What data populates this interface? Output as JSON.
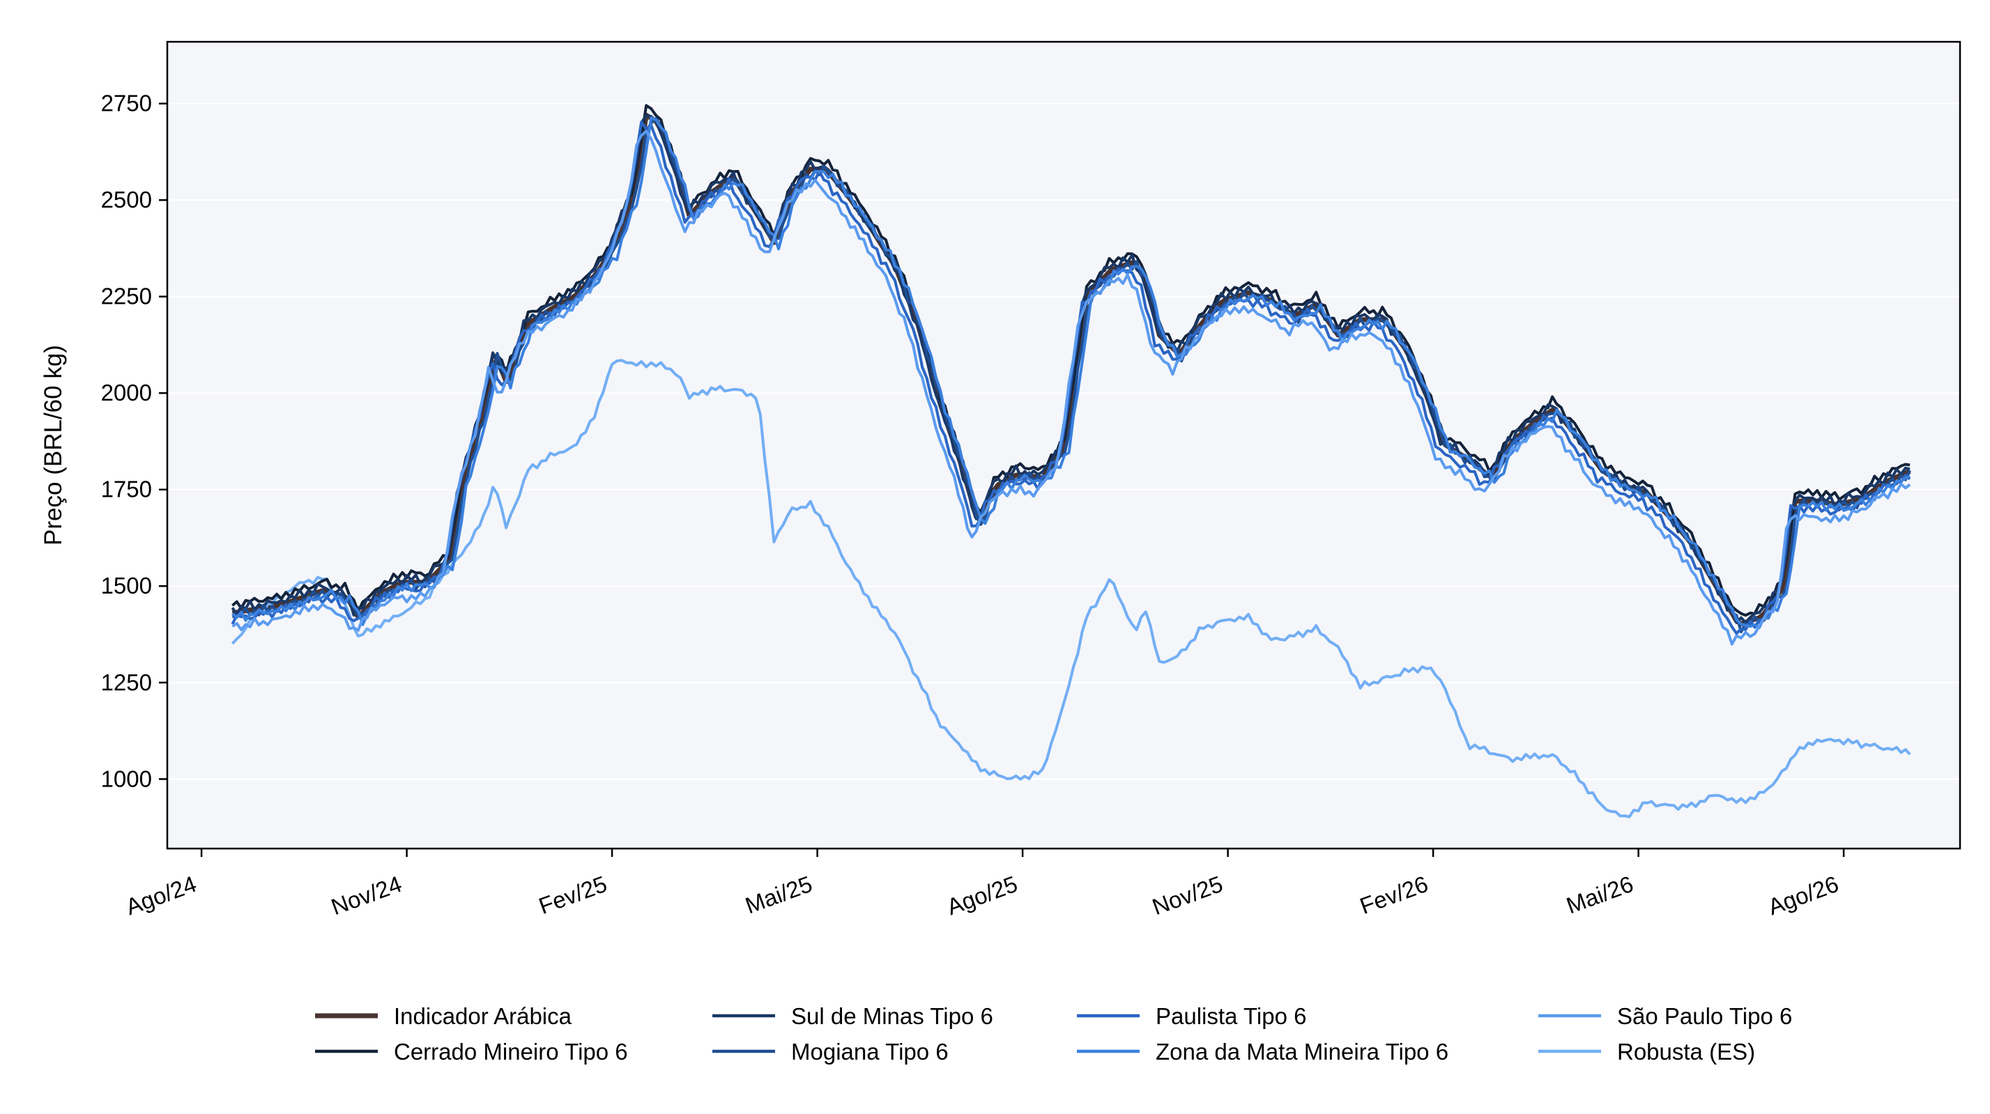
{
  "chart_data": {
    "type": "line",
    "title": "",
    "xlabel": "",
    "ylabel": "Preço (BRL/60 kg)",
    "ylim": [
      820,
      2910
    ],
    "yticks": [
      1000,
      1250,
      1500,
      1750,
      2000,
      2250,
      2500,
      2750
    ],
    "xlim_months": [
      -0.5,
      25.7
    ],
    "xticks": [
      {
        "label": "Ago/24",
        "m": 0
      },
      {
        "label": "Nov/24",
        "m": 3
      },
      {
        "label": "Fev/25",
        "m": 6
      },
      {
        "label": "Mai/25",
        "m": 9
      },
      {
        "label": "Ago/25",
        "m": 12
      },
      {
        "label": "Nov/25",
        "m": 15
      },
      {
        "label": "Fev/26",
        "m": 18
      },
      {
        "label": "Mai/26",
        "m": 21
      },
      {
        "label": "Ago/26",
        "m": 24
      }
    ],
    "grid": "horizontal",
    "legend_position": "bottom",
    "x_start": "2024-08-15",
    "x_end": "2026-09-01",
    "background": "#f4f6fa",
    "arabica_base": [
      [
        "2024-08-15",
        1430
      ],
      [
        "2024-08-25",
        1440
      ],
      [
        "2024-09-05",
        1450
      ],
      [
        "2024-09-15",
        1470
      ],
      [
        "2024-09-25",
        1490
      ],
      [
        "2024-10-05",
        1470
      ],
      [
        "2024-10-10",
        1420
      ],
      [
        "2024-10-20",
        1480
      ],
      [
        "2024-10-30",
        1510
      ],
      [
        "2024-11-10",
        1510
      ],
      [
        "2024-11-20",
        1570
      ],
      [
        "2024-11-25",
        1760
      ],
      [
        "2024-12-05",
        1960
      ],
      [
        "2024-12-10",
        2100
      ],
      [
        "2024-12-15",
        2030
      ],
      [
        "2024-12-25",
        2180
      ],
      [
        "2025-01-05",
        2220
      ],
      [
        "2025-01-15",
        2250
      ],
      [
        "2025-01-25",
        2310
      ],
      [
        "2025-02-01",
        2370
      ],
      [
        "2025-02-10",
        2520
      ],
      [
        "2025-02-15",
        2720
      ],
      [
        "2025-02-20",
        2700
      ],
      [
        "2025-03-01",
        2540
      ],
      [
        "2025-03-05",
        2460
      ],
      [
        "2025-03-15",
        2520
      ],
      [
        "2025-03-25",
        2560
      ],
      [
        "2025-04-05",
        2460
      ],
      [
        "2025-04-12",
        2390
      ],
      [
        "2025-04-20",
        2520
      ],
      [
        "2025-04-28",
        2580
      ],
      [
        "2025-05-05",
        2580
      ],
      [
        "2025-05-15",
        2510
      ],
      [
        "2025-05-25",
        2430
      ],
      [
        "2025-06-05",
        2330
      ],
      [
        "2025-06-15",
        2180
      ],
      [
        "2025-06-25",
        1970
      ],
      [
        "2025-07-05",
        1800
      ],
      [
        "2025-07-12",
        1660
      ],
      [
        "2025-07-20",
        1760
      ],
      [
        "2025-07-30",
        1790
      ],
      [
        "2025-08-10",
        1780
      ],
      [
        "2025-08-20",
        1860
      ],
      [
        "2025-08-30",
        2250
      ],
      [
        "2025-09-10",
        2320
      ],
      [
        "2025-09-20",
        2340
      ],
      [
        "2025-09-25",
        2290
      ],
      [
        "2025-10-01",
        2150
      ],
      [
        "2025-10-10",
        2100
      ],
      [
        "2025-10-20",
        2180
      ],
      [
        "2025-10-30",
        2240
      ],
      [
        "2025-11-10",
        2260
      ],
      [
        "2025-11-20",
        2240
      ],
      [
        "2025-11-30",
        2200
      ],
      [
        "2025-12-10",
        2230
      ],
      [
        "2025-12-20",
        2150
      ],
      [
        "2025-12-30",
        2190
      ],
      [
        "2026-01-10",
        2190
      ],
      [
        "2026-01-20",
        2110
      ],
      [
        "2026-01-30",
        1980
      ],
      [
        "2026-02-05",
        1870
      ],
      [
        "2026-02-15",
        1830
      ],
      [
        "2026-02-25",
        1780
      ],
      [
        "2026-03-05",
        1870
      ],
      [
        "2026-03-15",
        1920
      ],
      [
        "2026-03-25",
        1960
      ],
      [
        "2026-04-05",
        1880
      ],
      [
        "2026-04-15",
        1800
      ],
      [
        "2026-04-25",
        1760
      ],
      [
        "2026-05-05",
        1740
      ],
      [
        "2026-05-15",
        1680
      ],
      [
        "2026-05-25",
        1610
      ],
      [
        "2026-06-05",
        1500
      ],
      [
        "2026-06-15",
        1400
      ],
      [
        "2026-06-25",
        1420
      ],
      [
        "2026-07-05",
        1500
      ],
      [
        "2026-07-10",
        1720
      ],
      [
        "2026-07-20",
        1720
      ],
      [
        "2026-07-30",
        1710
      ],
      [
        "2026-08-10",
        1730
      ],
      [
        "2026-08-20",
        1770
      ],
      [
        "2026-09-01",
        1800
      ]
    ],
    "robusta": [
      [
        "2024-08-15",
        1350
      ],
      [
        "2024-08-25",
        1420
      ],
      [
        "2024-09-05",
        1470
      ],
      [
        "2024-09-15",
        1510
      ],
      [
        "2024-09-25",
        1520
      ],
      [
        "2024-10-05",
        1440
      ],
      [
        "2024-10-10",
        1370
      ],
      [
        "2024-10-20",
        1400
      ],
      [
        "2024-10-30",
        1430
      ],
      [
        "2024-11-10",
        1470
      ],
      [
        "2024-11-20",
        1550
      ],
      [
        "2024-11-25",
        1580
      ],
      [
        "2024-12-05",
        1680
      ],
      [
        "2024-12-10",
        1770
      ],
      [
        "2024-12-15",
        1650
      ],
      [
        "2024-12-25",
        1800
      ],
      [
        "2025-01-05",
        1840
      ],
      [
        "2025-01-15",
        1860
      ],
      [
        "2025-01-25",
        1950
      ],
      [
        "2025-02-01",
        2080
      ],
      [
        "2025-02-10",
        2080
      ],
      [
        "2025-02-15",
        2070
      ],
      [
        "2025-02-20",
        2080
      ],
      [
        "2025-03-01",
        2040
      ],
      [
        "2025-03-05",
        1990
      ],
      [
        "2025-03-15",
        2010
      ],
      [
        "2025-03-25",
        2010
      ],
      [
        "2025-04-05",
        1990
      ],
      [
        "2025-04-12",
        1620
      ],
      [
        "2025-04-20",
        1700
      ],
      [
        "2025-04-28",
        1710
      ],
      [
        "2025-05-05",
        1660
      ],
      [
        "2025-05-15",
        1550
      ],
      [
        "2025-05-25",
        1460
      ],
      [
        "2025-06-05",
        1380
      ],
      [
        "2025-06-15",
        1260
      ],
      [
        "2025-06-25",
        1140
      ],
      [
        "2025-07-05",
        1080
      ],
      [
        "2025-07-12",
        1030
      ],
      [
        "2025-07-20",
        1010
      ],
      [
        "2025-07-30",
        1000
      ],
      [
        "2025-08-10",
        1020
      ],
      [
        "2025-08-20",
        1200
      ],
      [
        "2025-08-30",
        1420
      ],
      [
        "2025-09-10",
        1520
      ],
      [
        "2025-09-20",
        1380
      ],
      [
        "2025-09-25",
        1440
      ],
      [
        "2025-10-01",
        1300
      ],
      [
        "2025-10-10",
        1320
      ],
      [
        "2025-10-20",
        1390
      ],
      [
        "2025-10-30",
        1410
      ],
      [
        "2025-11-10",
        1420
      ],
      [
        "2025-11-20",
        1360
      ],
      [
        "2025-11-30",
        1370
      ],
      [
        "2025-12-10",
        1390
      ],
      [
        "2025-12-20",
        1340
      ],
      [
        "2025-12-30",
        1240
      ],
      [
        "2026-01-10",
        1260
      ],
      [
        "2026-01-20",
        1280
      ],
      [
        "2026-01-30",
        1290
      ],
      [
        "2026-02-05",
        1250
      ],
      [
        "2026-02-15",
        1090
      ],
      [
        "2026-02-25",
        1070
      ],
      [
        "2026-03-05",
        1050
      ],
      [
        "2026-03-15",
        1060
      ],
      [
        "2026-03-25",
        1060
      ],
      [
        "2026-04-05",
        1000
      ],
      [
        "2026-04-15",
        930
      ],
      [
        "2026-04-25",
        900
      ],
      [
        "2026-05-05",
        940
      ],
      [
        "2026-05-15",
        930
      ],
      [
        "2026-05-25",
        930
      ],
      [
        "2026-06-05",
        960
      ],
      [
        "2026-06-15",
        940
      ],
      [
        "2026-06-25",
        960
      ],
      [
        "2026-07-05",
        1020
      ],
      [
        "2026-07-10",
        1070
      ],
      [
        "2026-07-20",
        1100
      ],
      [
        "2026-07-30",
        1100
      ],
      [
        "2026-08-10",
        1090
      ],
      [
        "2026-08-20",
        1080
      ],
      [
        "2026-09-01",
        1070
      ]
    ],
    "series": [
      {
        "name": "Indicador Arábica",
        "color": "#4a3430",
        "width": 7,
        "offset": 0,
        "lag": 0,
        "noise": 0
      },
      {
        "name": "Cerrado Mineiro Tipo 6",
        "color": "#14233a",
        "width": 4,
        "offset": 22,
        "lag": 0,
        "noise": 14
      },
      {
        "name": "Sul de Minas Tipo 6",
        "color": "#1a3866",
        "width": 4,
        "offset": 8,
        "lag": 1,
        "noise": 16
      },
      {
        "name": "Mogiana Tipo 6",
        "color": "#1e4e92",
        "width": 4,
        "offset": -5,
        "lag": -1,
        "noise": 16
      },
      {
        "name": "Paulista Tipo 6",
        "color": "#2a65c4",
        "width": 4,
        "offset": -18,
        "lag": 2,
        "noise": 15
      },
      {
        "name": "Zona da Mata Mineira Tipo 6",
        "color": "#3a80de",
        "width": 4,
        "offset": -10,
        "lag": -2,
        "noise": 15
      },
      {
        "name": "São Paulo Tipo 6",
        "color": "#5b9bef",
        "width": 4,
        "offset": -40,
        "lag": 3,
        "noise": 14
      },
      {
        "name": "Robusta (ES)",
        "color": "#72aef4",
        "width": 4,
        "offset": 0,
        "lag": 0,
        "noise": 10
      }
    ]
  }
}
